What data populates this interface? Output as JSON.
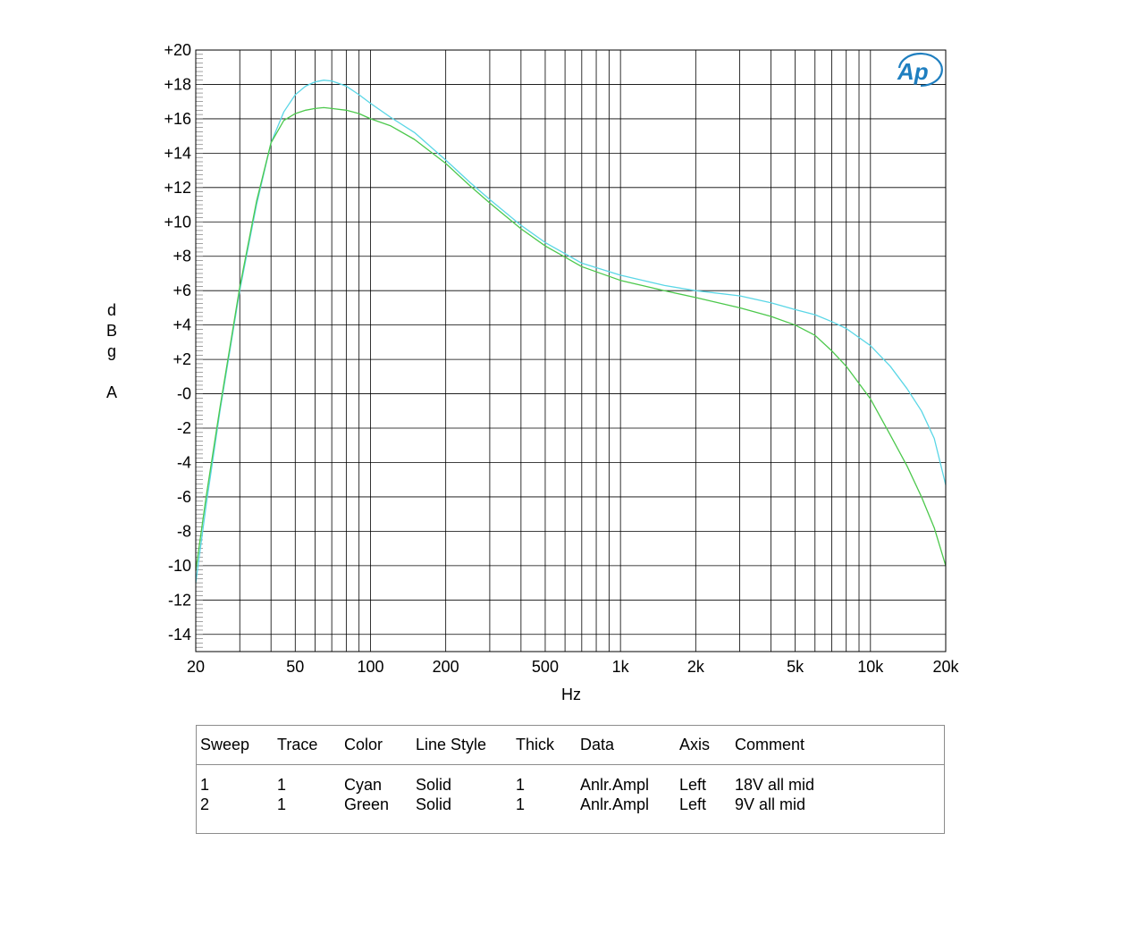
{
  "chart_data": {
    "type": "line",
    "xlabel": "Hz",
    "ylabel": [
      "d",
      "B",
      "g",
      "",
      "A"
    ],
    "xscale": "log",
    "xlim": [
      20,
      20000
    ],
    "ylim": [
      -15,
      20
    ],
    "grid": true,
    "x_ticks": [
      {
        "value": 20,
        "label": "20"
      },
      {
        "value": 50,
        "label": "50"
      },
      {
        "value": 100,
        "label": "100"
      },
      {
        "value": 200,
        "label": "200"
      },
      {
        "value": 500,
        "label": "500"
      },
      {
        "value": 1000,
        "label": "1k"
      },
      {
        "value": 2000,
        "label": "2k"
      },
      {
        "value": 5000,
        "label": "5k"
      },
      {
        "value": 10000,
        "label": "10k"
      },
      {
        "value": 20000,
        "label": "20k"
      }
    ],
    "y_ticks": [
      {
        "value": 20,
        "label": "+20"
      },
      {
        "value": 18,
        "label": "+18"
      },
      {
        "value": 16,
        "label": "+16"
      },
      {
        "value": 14,
        "label": "+14"
      },
      {
        "value": 12,
        "label": "+12"
      },
      {
        "value": 10,
        "label": "+10"
      },
      {
        "value": 8,
        "label": "+8"
      },
      {
        "value": 6,
        "label": "+6"
      },
      {
        "value": 4,
        "label": "+4"
      },
      {
        "value": 2,
        "label": "+2"
      },
      {
        "value": 0,
        "label": "-0"
      },
      {
        "value": -2,
        "label": "-2"
      },
      {
        "value": -4,
        "label": "-4"
      },
      {
        "value": -6,
        "label": "-6"
      },
      {
        "value": -8,
        "label": "-8"
      },
      {
        "value": -10,
        "label": "-10"
      },
      {
        "value": -12,
        "label": "-12"
      },
      {
        "value": -14,
        "label": "-14"
      }
    ],
    "series": [
      {
        "color": "#5ad6e6",
        "x": [
          20,
          22,
          25,
          30,
          35,
          40,
          45,
          50,
          55,
          60,
          65,
          70,
          80,
          90,
          100,
          120,
          150,
          200,
          250,
          300,
          400,
          500,
          700,
          1000,
          1500,
          2000,
          3000,
          4000,
          5000,
          6000,
          7000,
          8000,
          10000,
          12000,
          14000,
          16000,
          18000,
          20000
        ],
        "y": [
          -11.0,
          -6.5,
          -1.0,
          6.0,
          11.0,
          14.6,
          16.4,
          17.4,
          17.9,
          18.15,
          18.25,
          18.2,
          17.9,
          17.4,
          16.9,
          16.1,
          15.2,
          13.6,
          12.3,
          11.3,
          9.8,
          8.8,
          7.6,
          6.9,
          6.3,
          6.0,
          5.7,
          5.3,
          4.9,
          4.6,
          4.2,
          3.8,
          2.8,
          1.6,
          0.3,
          -1.0,
          -2.6,
          -5.3
        ]
      },
      {
        "color": "#4cc84c",
        "x": [
          20,
          22,
          25,
          30,
          35,
          40,
          45,
          50,
          55,
          60,
          65,
          70,
          80,
          90,
          100,
          120,
          150,
          200,
          250,
          300,
          400,
          500,
          700,
          1000,
          1500,
          2000,
          3000,
          4000,
          5000,
          6000,
          7000,
          8000,
          10000,
          12000,
          14000,
          16000,
          18000,
          20000
        ],
        "y": [
          -10.3,
          -6.0,
          -0.8,
          6.2,
          11.2,
          14.6,
          15.9,
          16.3,
          16.5,
          16.6,
          16.65,
          16.6,
          16.5,
          16.3,
          16.0,
          15.6,
          14.8,
          13.4,
          12.1,
          11.1,
          9.6,
          8.6,
          7.4,
          6.6,
          6.0,
          5.6,
          5.0,
          4.5,
          4.0,
          3.4,
          2.5,
          1.6,
          -0.3,
          -2.4,
          -4.2,
          -6.0,
          -7.8,
          -10.0
        ]
      }
    ]
  },
  "logo": {
    "text": "Ap",
    "color": "#1f7fc0"
  },
  "legend": {
    "headers": [
      "Sweep",
      "Trace",
      "Color",
      "Line Style",
      "Thick",
      "Data",
      "Axis",
      "Comment"
    ],
    "rows": [
      [
        "1",
        "1",
        "Cyan",
        "Solid",
        "1",
        "Anlr.Ampl",
        "Left",
        "18V all mid"
      ],
      [
        "2",
        "1",
        "Green",
        "Solid",
        "1",
        "Anlr.Ampl",
        "Left",
        "9V all mid"
      ]
    ]
  }
}
